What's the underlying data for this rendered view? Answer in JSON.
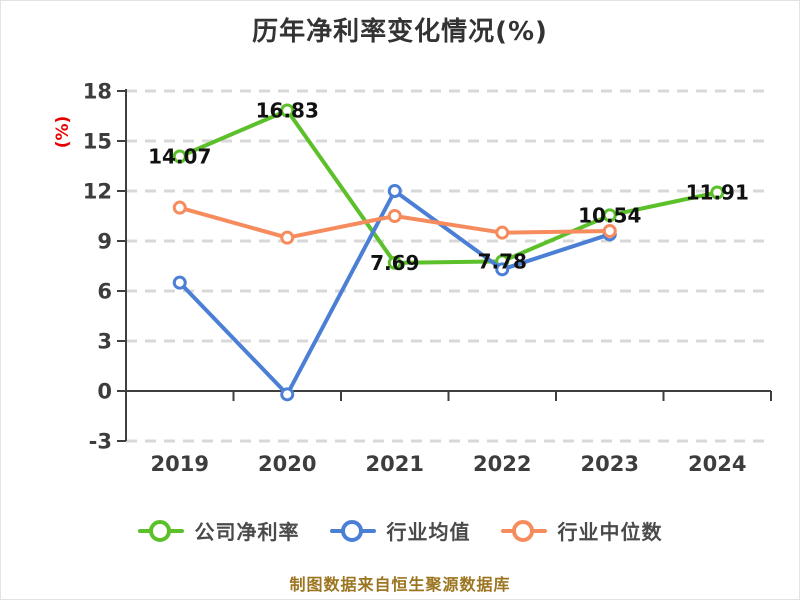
{
  "footer": {
    "text": "制图数据来自恒生聚源数据库"
  },
  "colors": {
    "company": "#5bc02a",
    "industry_avg": "#4b7fd6",
    "industry_median": "#f68c5e",
    "grid": "#d8d8d8",
    "axis": "#3f3f3f",
    "tick_label": "#3d3d3d",
    "data_label": "#111111",
    "y_unit_label": "#e60000",
    "title": "#333333",
    "footer": "#9c7520"
  },
  "chart_data": {
    "type": "line",
    "title": "历年净利率变化情况(%)",
    "ylabel": "(%)",
    "xlabel": "",
    "categories": [
      "2019",
      "2020",
      "2021",
      "2022",
      "2023",
      "2024"
    ],
    "series": [
      {
        "name": "公司净利率",
        "color": "#5bc02a",
        "values": [
          14.07,
          16.83,
          7.69,
          7.78,
          10.54,
          11.91
        ],
        "labels": [
          "14.07",
          "16.83",
          "7.69",
          "7.78",
          "10.54",
          "11.91"
        ]
      },
      {
        "name": "行业均值",
        "color": "#4b7fd6",
        "values": [
          6.5,
          -0.2,
          12.0,
          7.3,
          9.4,
          null
        ],
        "labels": null
      },
      {
        "name": "行业中位数",
        "color": "#f68c5e",
        "values": [
          11.0,
          9.2,
          10.5,
          9.5,
          9.6,
          null
        ],
        "labels": null
      }
    ],
    "ylim": [
      -3,
      18
    ],
    "yticks": [
      18,
      15,
      12,
      9,
      6,
      3,
      0,
      -3
    ],
    "grid": "horizontal-dashed",
    "legend_position": "bottom"
  }
}
